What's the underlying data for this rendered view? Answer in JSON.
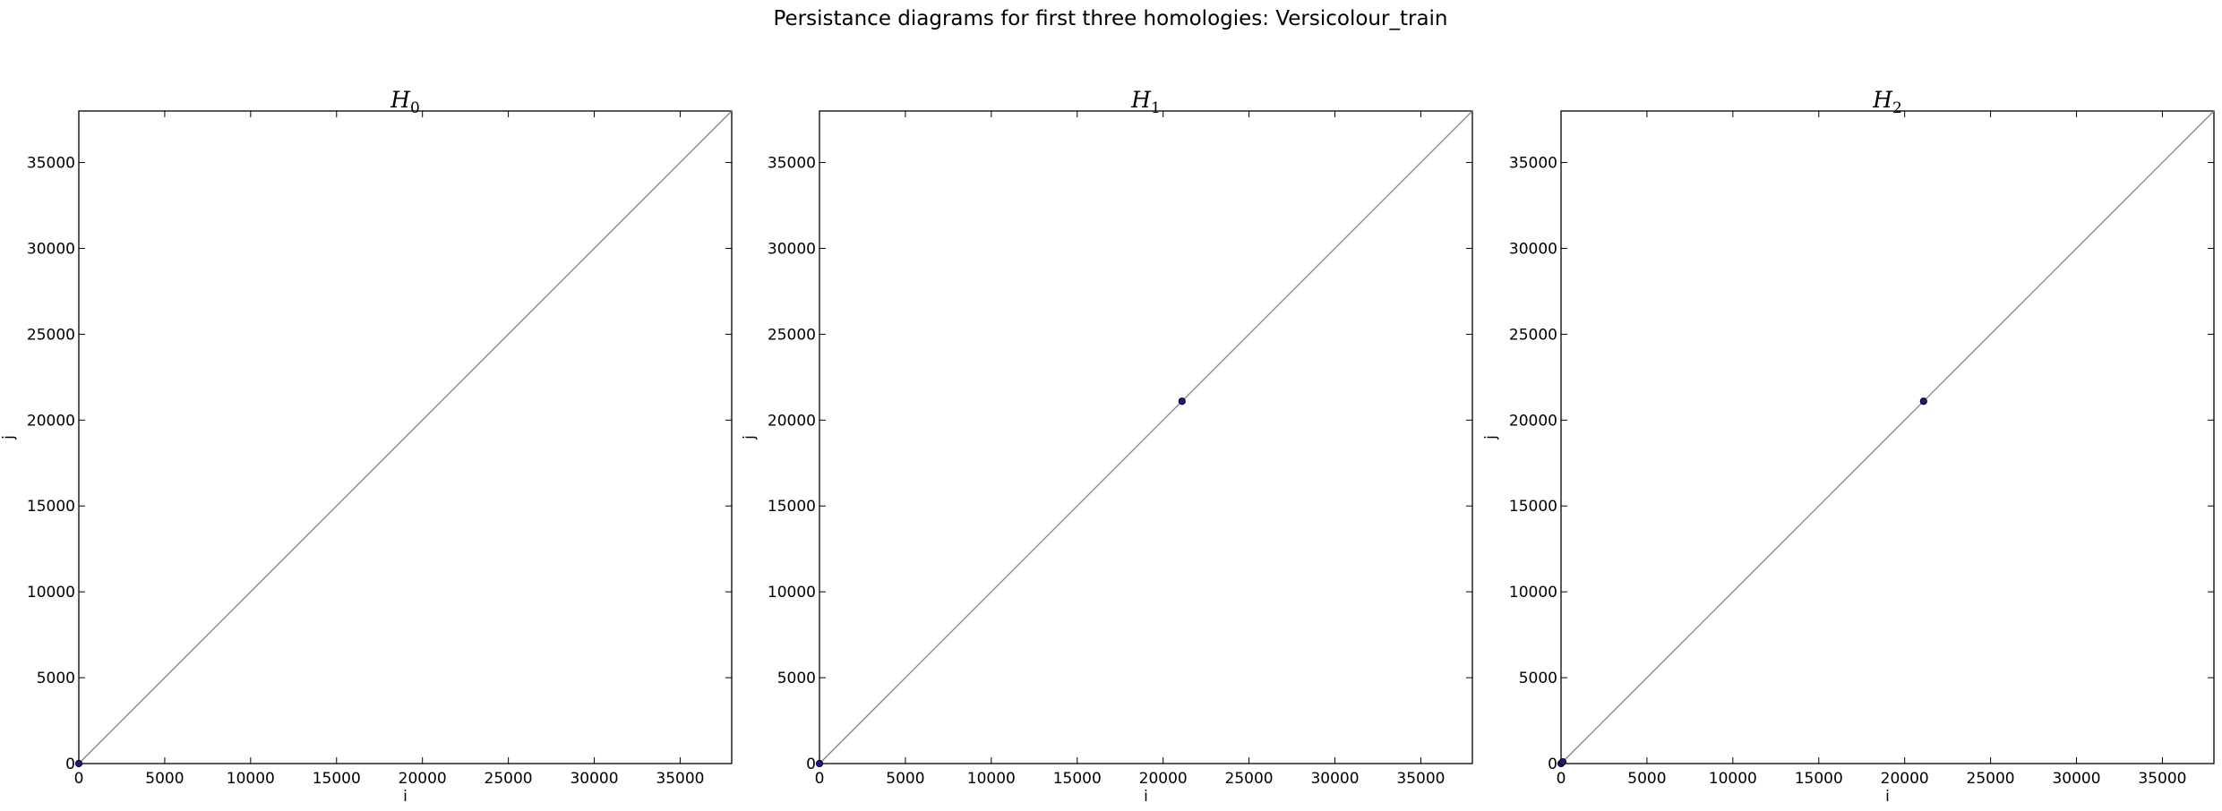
{
  "figure": {
    "suptitle": "Persistance diagrams for first three homologies: Versicolour_train"
  },
  "colors": {
    "diagonal": "#808080",
    "point_fill": "#1a1a8c",
    "point_edge": "#000000",
    "axes": "#000000"
  },
  "chart_data": [
    {
      "type": "scatter",
      "title": "H_0",
      "title_main": "H",
      "title_sub": "0",
      "xlabel": "i",
      "ylabel": "j",
      "xlim": [
        0,
        38000
      ],
      "ylim": [
        0,
        38000
      ],
      "xticks": [
        0,
        5000,
        10000,
        15000,
        20000,
        25000,
        30000,
        35000
      ],
      "yticks": [
        0,
        5000,
        10000,
        15000,
        20000,
        25000,
        30000,
        35000
      ],
      "diagonal": true,
      "grid": false,
      "points": [
        {
          "x": 0,
          "y": 0
        }
      ]
    },
    {
      "type": "scatter",
      "title": "H_1",
      "title_main": "H",
      "title_sub": "1",
      "xlabel": "i",
      "ylabel": "j",
      "xlim": [
        0,
        38000
      ],
      "ylim": [
        0,
        38000
      ],
      "xticks": [
        0,
        5000,
        10000,
        15000,
        20000,
        25000,
        30000,
        35000
      ],
      "yticks": [
        0,
        5000,
        10000,
        15000,
        20000,
        25000,
        30000,
        35000
      ],
      "diagonal": true,
      "grid": false,
      "points": [
        {
          "x": 0,
          "y": 0
        },
        {
          "x": 21100,
          "y": 21100
        }
      ]
    },
    {
      "type": "scatter",
      "title": "H_2",
      "title_main": "H",
      "title_sub": "2",
      "xlabel": "i",
      "ylabel": "j",
      "xlim": [
        0,
        38000
      ],
      "ylim": [
        0,
        38000
      ],
      "xticks": [
        0,
        5000,
        10000,
        15000,
        20000,
        25000,
        30000,
        35000
      ],
      "yticks": [
        0,
        5000,
        10000,
        15000,
        20000,
        25000,
        30000,
        35000
      ],
      "diagonal": true,
      "grid": false,
      "points": [
        {
          "x": 0,
          "y": 0
        },
        {
          "x": 100,
          "y": 100
        },
        {
          "x": 21100,
          "y": 21100
        }
      ]
    }
  ]
}
